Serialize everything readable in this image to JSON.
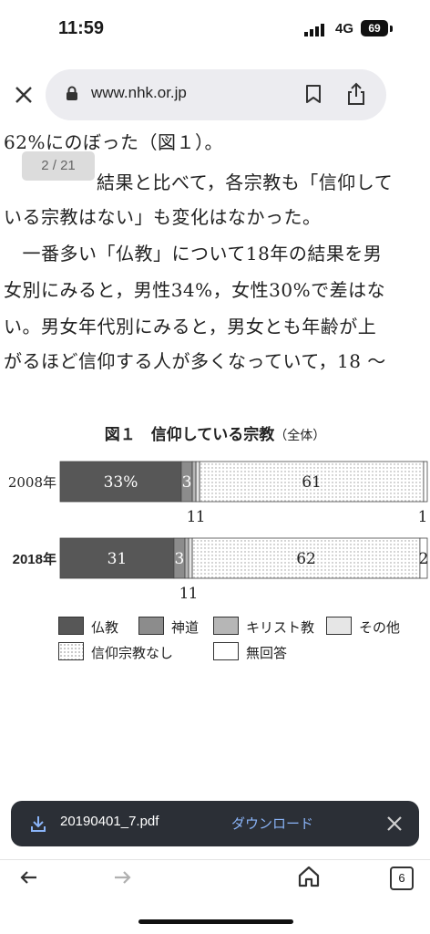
{
  "status_bar": {
    "time": "11:59",
    "network": "4G",
    "battery": "69"
  },
  "browser": {
    "url": "www.nhk.or.jp"
  },
  "article": {
    "line1": "62%にのぼった（図１）。",
    "line2": "結果と比べて，各宗教も「信仰して",
    "line3": "いる宗教はない」も変化はなかった。",
    "line4": "　一番多い「仏教」について18年の結果を男",
    "line5": "女別にみると，男性34%，女性30%で差はな",
    "line6": "い。男女年代別にみると，男女とも年齢が上",
    "line7": "がるほど信仰する人が多くなっていて，18 〜"
  },
  "page_indicator": "2 / 21",
  "chart_data": {
    "type": "bar",
    "orientation": "horizontal-stacked",
    "title": "図１　信仰している宗教",
    "subtitle": "（全体）",
    "categories": [
      "2008年",
      "2018年"
    ],
    "series": [
      {
        "name": "仏教",
        "values": [
          33,
          31
        ],
        "labels": [
          "33%",
          "31"
        ],
        "color": "#575757",
        "fill": "solid"
      },
      {
        "name": "神道",
        "values": [
          3,
          3
        ],
        "labels": [
          "3",
          "3"
        ],
        "color": "#8c8c8c",
        "fill": "solid"
      },
      {
        "name": "キリスト教",
        "values": [
          1,
          1
        ],
        "labels": [
          "1",
          "1"
        ],
        "color": "#b6b6b6",
        "fill": "solid"
      },
      {
        "name": "その他",
        "values": [
          1,
          1
        ],
        "labels": [
          "1",
          "1"
        ],
        "color": "#e6e6e6",
        "fill": "solid"
      },
      {
        "name": "信仰宗教なし",
        "values": [
          61,
          62
        ],
        "labels": [
          "61",
          "62"
        ],
        "color": "#ffffff",
        "fill": "dotted"
      },
      {
        "name": "無回答",
        "values": [
          1,
          2
        ],
        "labels": [
          "1",
          "2"
        ],
        "color": "#ffffff",
        "fill": "solid"
      }
    ],
    "xlim": [
      0,
      100
    ],
    "legend": "bottom"
  },
  "download_bar": {
    "filename": "20190401_7.pdf",
    "action": "ダウンロード"
  },
  "bottom_nav": {
    "tab_count": "6"
  }
}
